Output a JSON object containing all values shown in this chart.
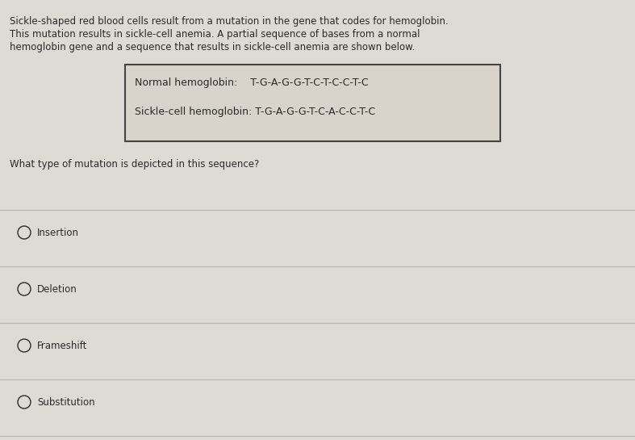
{
  "background_color": "#c8c5bf",
  "content_bg": "#dedad4",
  "text_color": "#2a2a2a",
  "intro_text_line1": "Sickle-shaped red blood cells result from a mutation in the gene that codes for hemoglobin.",
  "intro_text_line2": "This mutation results in sickle-cell anemia. A partial sequence of bases from a normal",
  "intro_text_line3": "hemoglobin gene and a sequence that results in sickle-cell anemia are shown below.",
  "normal_label": "Normal hemoglobin:",
  "normal_seq": "T-G-A-G-G-T-C-T-C-C-T-C",
  "sickle_label": "Sickle-cell hemoglobin:",
  "sickle_seq": "T-G-A-G-G-T-C-A-C-C-T-C",
  "question": "What type of mutation is depicted in this sequence?",
  "options": [
    "Insertion",
    "Deletion",
    "Frameshift",
    "Substitution"
  ],
  "box_facecolor": "#d8d4cc",
  "box_edgecolor": "#444444",
  "line_color": "#b8b5af",
  "font_size_intro": 8.5,
  "font_size_box": 9.0,
  "font_size_question": 8.5,
  "font_size_options": 8.5
}
